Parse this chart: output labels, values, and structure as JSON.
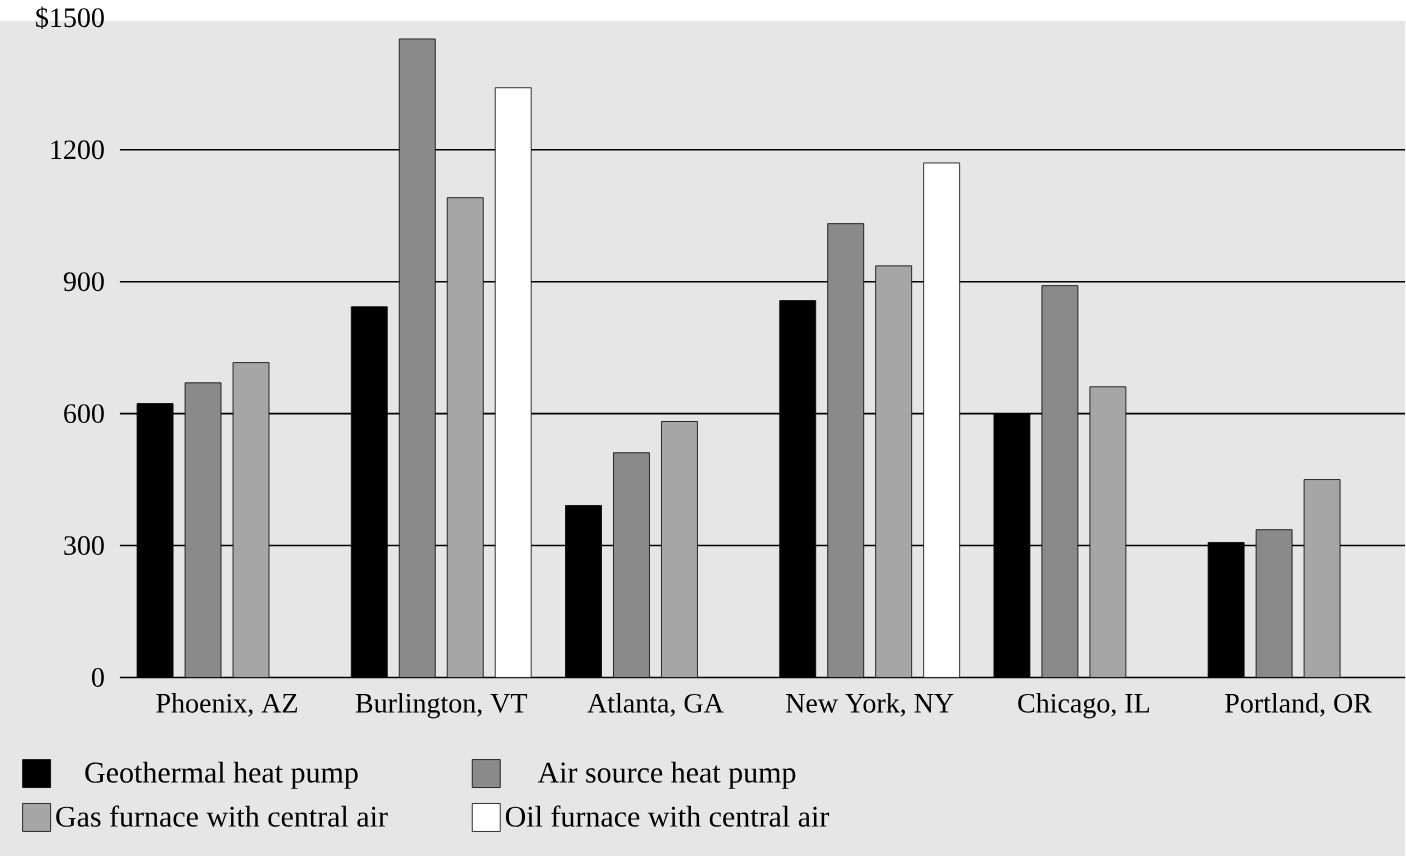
{
  "chart_data": {
    "type": "bar",
    "categories": [
      "Phoenix, AZ",
      "Burlington, VT",
      "Atlanta, GA",
      "New York, NY",
      "Chicago, IL",
      "Portland, OR"
    ],
    "series": [
      {
        "name": "Geothermal heat pump",
        "color": "#000000",
        "values": [
          623,
          843,
          391,
          857,
          600,
          307
        ]
      },
      {
        "name": "Air source heat pump",
        "color": "#8a8a8a",
        "values": [
          670,
          1452,
          511,
          1032,
          891,
          336
        ]
      },
      {
        "name": "Gas furnace with central air",
        "color": "#a6a6a6",
        "values": [
          716,
          1091,
          582,
          936,
          661,
          450
        ]
      },
      {
        "name": "Oil furnace with central air",
        "color": "#ffffff",
        "values": [
          null,
          1341,
          null,
          1170,
          null,
          null
        ]
      }
    ],
    "ylim": [
      0,
      1500
    ],
    "yticks": [
      0,
      300,
      600,
      900,
      1200,
      {
        "value": 1500,
        "label": "$1500"
      }
    ],
    "grid": "y",
    "legend": "bottom"
  }
}
